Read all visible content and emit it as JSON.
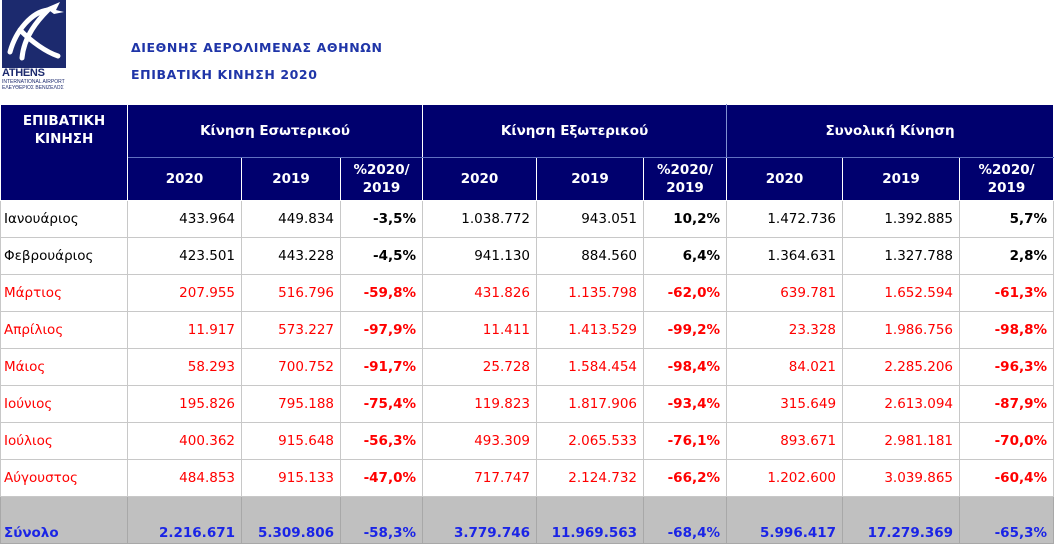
{
  "header": {
    "logo_name": "ATHENS",
    "logo_line1": "INTERNATIONAL AIRPORT",
    "logo_line2": "ΕΛΕΥΘΕΡΙΟΣ ΒΕΝΙΖΕΛΟΣ",
    "title": "ΔΙΕΘΝΗΣ ΑΕΡΟΛΙΜΕΝΑΣ ΑΘΗΝΩΝ",
    "subtitle": "ΕΠΙΒΑΤΙΚΗ ΚΙΝΗΣΗ 2020"
  },
  "table": {
    "corner_header": "ΕΠΙΒΑΤΙΚΗ ΚΙΝΗΣΗ",
    "groups": [
      "Κίνηση Εσωτερικού",
      "Κίνηση Εξωτερικού",
      "Συνολική Κίνηση"
    ],
    "sub_headers": [
      "2020",
      "2019",
      "%2020/ 2019",
      "2020",
      "2019",
      "%2020/ 2019",
      "2020",
      "2019",
      "%2020/ 2019"
    ],
    "rows": [
      {
        "month": "Ιανουάριος",
        "style": "black",
        "values": [
          "433.964",
          "449.834",
          "-3,5%",
          "1.038.772",
          "943.051",
          "10,2%",
          "1.472.736",
          "1.392.885",
          "5,7%"
        ]
      },
      {
        "month": "Φεβρουάριος",
        "style": "black",
        "values": [
          "423.501",
          "443.228",
          "-4,5%",
          "941.130",
          "884.560",
          "6,4%",
          "1.364.631",
          "1.327.788",
          "2,8%"
        ]
      },
      {
        "month": "Μάρτιος",
        "style": "red",
        "values": [
          "207.955",
          "516.796",
          "-59,8%",
          "431.826",
          "1.135.798",
          "-62,0%",
          "639.781",
          "1.652.594",
          "-61,3%"
        ]
      },
      {
        "month": "Απρίλιος",
        "style": "red",
        "values": [
          "11.917",
          "573.227",
          "-97,9%",
          "11.411",
          "1.413.529",
          "-99,2%",
          "23.328",
          "1.986.756",
          "-98,8%"
        ]
      },
      {
        "month": "Μάιος",
        "style": "red",
        "values": [
          "58.293",
          "700.752",
          "-91,7%",
          "25.728",
          "1.584.454",
          "-98,4%",
          "84.021",
          "2.285.206",
          "-96,3%"
        ]
      },
      {
        "month": "Ιούνιος",
        "style": "red",
        "values": [
          "195.826",
          "795.188",
          "-75,4%",
          "119.823",
          "1.817.906",
          "-93,4%",
          "315.649",
          "2.613.094",
          "-87,9%"
        ]
      },
      {
        "month": "Ιούλιος",
        "style": "red",
        "values": [
          "400.362",
          "915.648",
          "-56,3%",
          "493.309",
          "2.065.533",
          "-76,1%",
          "893.671",
          "2.981.181",
          "-70,0%"
        ]
      },
      {
        "month": "Αύγουστος",
        "style": "red",
        "values": [
          "484.853",
          "915.133",
          "-47,0%",
          "717.747",
          "2.124.732",
          "-66,2%",
          "1.202.600",
          "3.039.865",
          "-60,4%"
        ]
      }
    ],
    "total": {
      "month": "Σύνολο",
      "values": [
        "2.216.671",
        "5.309.806",
        "-58,3%",
        "3.779.746",
        "11.969.563",
        "-68,4%",
        "5.996.417",
        "17.279.369",
        "-65,3%"
      ]
    }
  },
  "colors": {
    "header_bg": "#00006e",
    "title_blue": "#1f35a8",
    "decline_red": "#ff0000",
    "total_bg": "#c0c0c0",
    "total_text": "#1a24e6"
  }
}
